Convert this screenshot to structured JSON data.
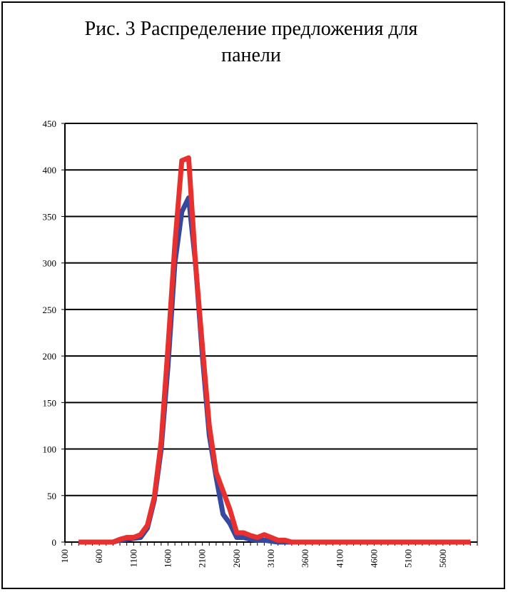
{
  "chart_data": {
    "type": "line",
    "title_lines": [
      "Рис. 3 Распределение предложения для",
      "панели"
    ],
    "xlabel": "",
    "ylabel": "",
    "ylim": [
      0,
      450
    ],
    "yticks": [
      0,
      50,
      100,
      150,
      200,
      250,
      300,
      350,
      400,
      450
    ],
    "xlim": [
      100,
      6100
    ],
    "xticks": [
      100,
      600,
      1100,
      1600,
      2100,
      2600,
      3100,
      3600,
      4100,
      4600,
      5100,
      5600
    ],
    "grid": "horizontal",
    "legend": "none",
    "x": [
      300,
      400,
      500,
      600,
      700,
      800,
      900,
      1000,
      1100,
      1200,
      1300,
      1400,
      1500,
      1600,
      1700,
      1800,
      1900,
      2000,
      2100,
      2200,
      2300,
      2400,
      2500,
      2600,
      2700,
      2800,
      2900,
      3000,
      3100,
      3200,
      3300,
      3400,
      3500,
      3600,
      3700,
      3800,
      3900,
      4000,
      4100,
      4200,
      4300,
      4400,
      4500,
      4600,
      4700,
      4800,
      4900,
      5000,
      5100,
      5200,
      5300,
      5400,
      5500,
      5600,
      5700,
      5800,
      5900,
      6000
    ],
    "series": [
      {
        "color": "#3549a0",
        "values": [
          0,
          0,
          0,
          0,
          0,
          0,
          2,
          3,
          4,
          5,
          15,
          45,
          100,
          190,
          300,
          355,
          370,
          300,
          200,
          115,
          70,
          30,
          20,
          5,
          5,
          3,
          2,
          2,
          1,
          0,
          0,
          0,
          0,
          0,
          0,
          0,
          0,
          0,
          0,
          0,
          0,
          0,
          0,
          0,
          0,
          0,
          0,
          0,
          0,
          0,
          0,
          0,
          0,
          0,
          0,
          0,
          0,
          0
        ]
      },
      {
        "color": "#e8312f",
        "values": [
          0,
          0,
          0,
          0,
          0,
          0,
          3,
          5,
          5,
          8,
          18,
          48,
          108,
          210,
          320,
          410,
          413,
          300,
          210,
          125,
          75,
          55,
          35,
          10,
          10,
          7,
          5,
          8,
          5,
          2,
          2,
          0,
          0,
          0,
          0,
          0,
          0,
          0,
          0,
          0,
          0,
          0,
          0,
          0,
          0,
          0,
          0,
          0,
          0,
          0,
          0,
          0,
          0,
          0,
          0,
          0,
          0,
          0
        ]
      }
    ]
  }
}
